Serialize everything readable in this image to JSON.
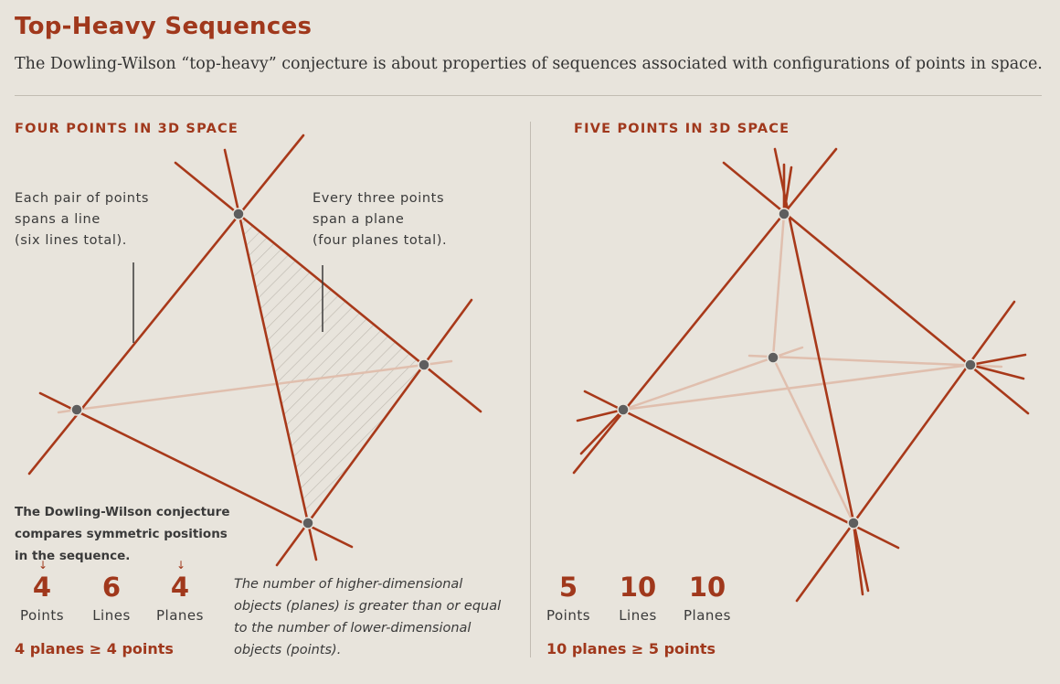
{
  "header": {
    "title": "Top-Heavy Sequences",
    "subtitle": "The Dowling-Wilson “top-heavy” conjecture is about properties of sequences associated with configurations of points in space."
  },
  "left": {
    "label": "FOUR POINTS IN 3D SPACE",
    "line_note": "Each pair of points\nspans a line\n(six lines total).",
    "plane_note": "Every three points\nspan a plane\n(four planes total).",
    "conjecture_note": "The Dowling-Wilson conjecture\ncompares symmetric positions\nin the sequence.",
    "stats": [
      {
        "value": "4",
        "label": "Points"
      },
      {
        "value": "6",
        "label": "Lines"
      },
      {
        "value": "4",
        "label": "Planes"
      }
    ],
    "inequality": "4 planes ≥ 4 points",
    "italic_note": "The number of higher-dimensional\nobjects (planes) is greater than or equal\nto the number of lower-dimensional\nobjects (points)."
  },
  "right": {
    "label": "FIVE POINTS IN 3D SPACE",
    "stats": [
      {
        "value": "5",
        "label": "Points"
      },
      {
        "value": "10",
        "label": "Lines"
      },
      {
        "value": "10",
        "label": "Planes"
      }
    ],
    "inequality": "10 planes ≥ 5 points"
  },
  "colors": {
    "accent": "#a0381c",
    "line": "#a8391a",
    "faint_line": "#e0bfae",
    "point": "#5e5e5e",
    "background": "#e8e4dc"
  }
}
